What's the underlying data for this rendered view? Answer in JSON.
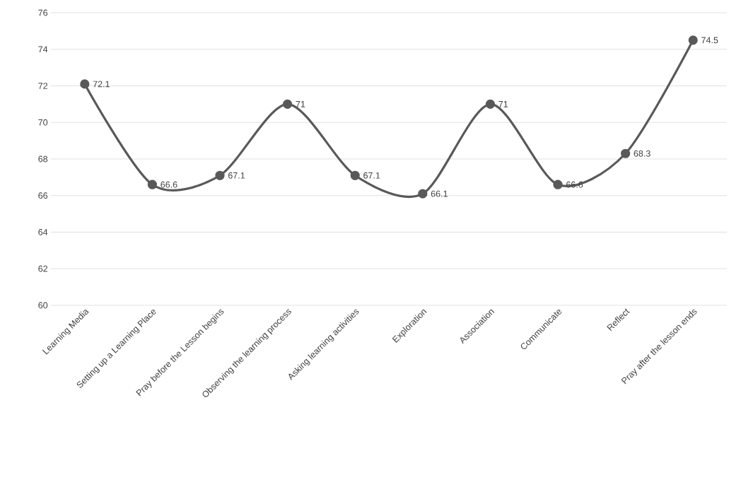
{
  "chart_data": {
    "type": "line",
    "categories": [
      "Learning Media",
      "Setting up a Learning Place",
      "Pray before the Lesson begins",
      "Observing the learning process",
      "Asking learning activities",
      "Exploration",
      "Association",
      "Communicate",
      "Reflect",
      "Pray after the lesson ends"
    ],
    "values": [
      72.1,
      66.6,
      67.1,
      71,
      67.1,
      66.1,
      71,
      66.6,
      68.3,
      74.5
    ],
    "color": "#595959",
    "marker": "circle",
    "line_style": "solid",
    "ylim": [
      60,
      76
    ],
    "yticks": [
      60,
      62,
      64,
      66,
      68,
      70,
      72,
      74,
      76
    ],
    "grid": "y",
    "data_labels": true
  }
}
